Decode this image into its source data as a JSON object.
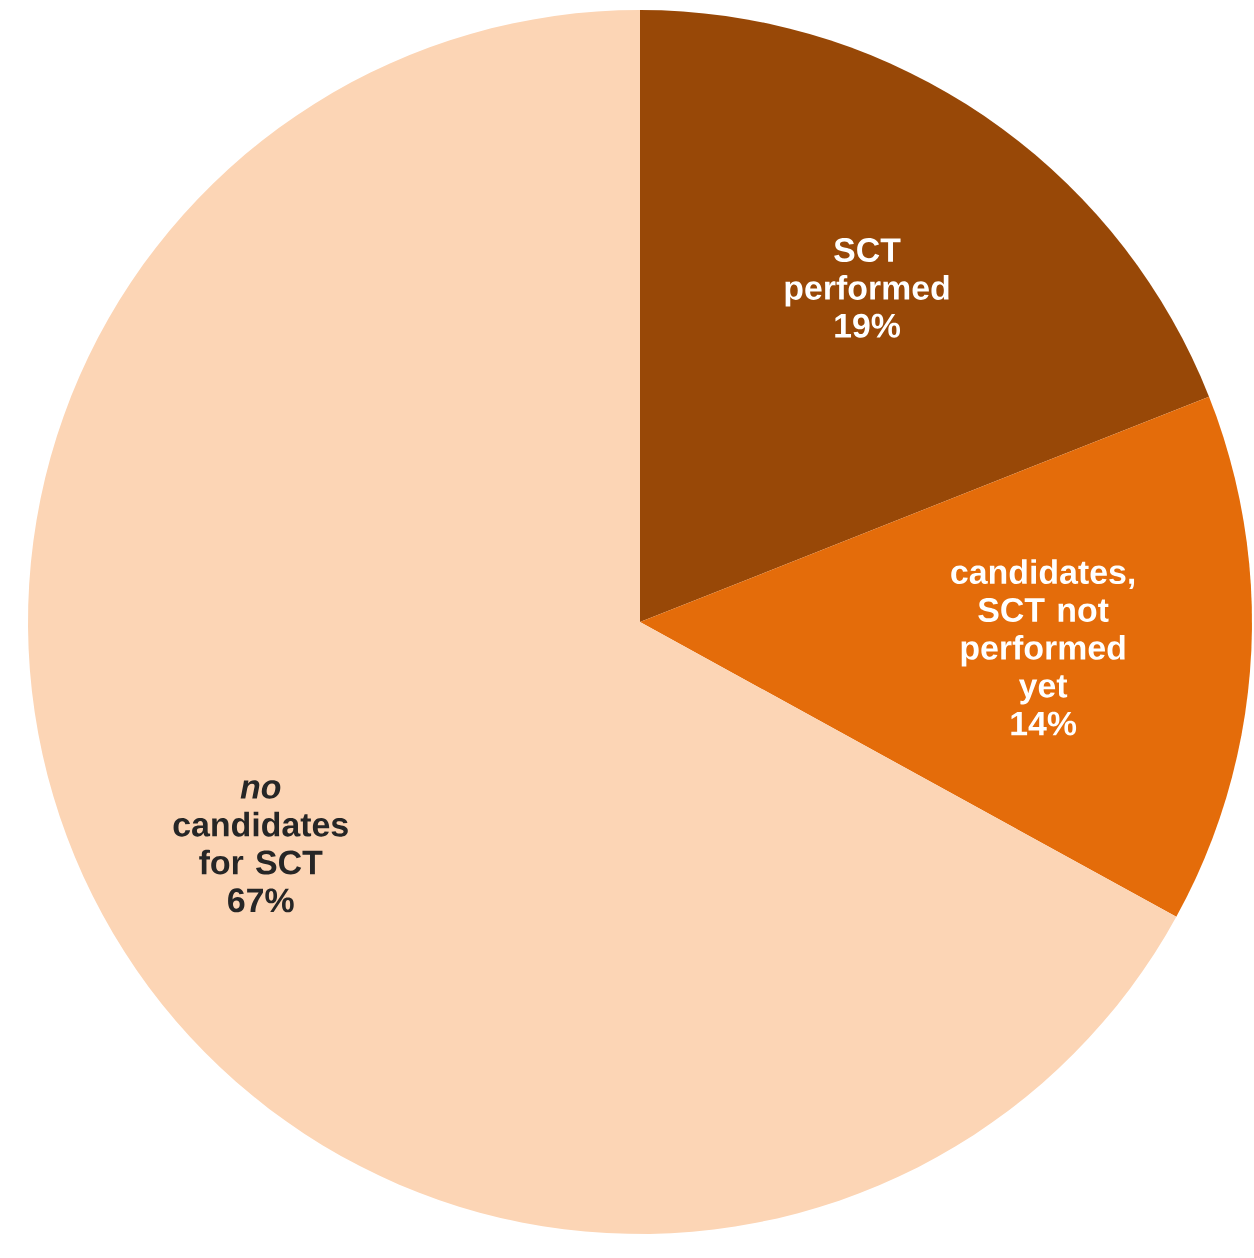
{
  "chart_data": {
    "type": "pie",
    "categories": [
      "SCT performed",
      "candidates, SCT not performed yet",
      "*no* candidates for SCT"
    ],
    "values": [
      19,
      14,
      67
    ],
    "value_labels": [
      "19%",
      "14%",
      "67%"
    ],
    "colors": [
      "#984807",
      "#e46c0a",
      "#fcd5b5"
    ]
  }
}
